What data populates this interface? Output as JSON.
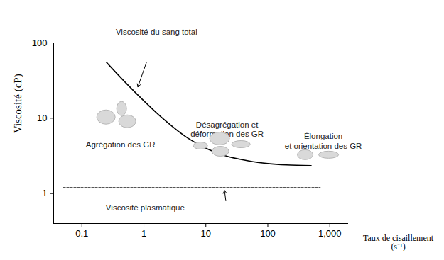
{
  "chart_data": {
    "type": "line",
    "xlabel": "Taux de cisaillement (s⁻¹)",
    "ylabel": "Viscosité (cP)",
    "log": true,
    "grid": false,
    "xlim": [
      0.035,
      2000
    ],
    "xticks": [
      0.1,
      1,
      10,
      100,
      {
        "value": 1000,
        "label": "1,000"
      }
    ],
    "ylim": [
      0.4,
      100
    ],
    "yticks": [
      1,
      10,
      100
    ],
    "series": [
      {
        "x": [
          0.25,
          0.5,
          1,
          2,
          5,
          10,
          20,
          50,
          100,
          200,
          500
        ],
        "values": [
          55,
          30,
          17,
          10,
          5.5,
          4,
          3.2,
          2.7,
          2.5,
          2.4,
          2.35
        ],
        "color": "#000000",
        "line_style": "solid"
      },
      {
        "x": [
          0.05,
          700
        ],
        "values": [
          1.2,
          1.2
        ],
        "color": "#555555",
        "line_style": "dotted"
      }
    ],
    "annotations": [
      {
        "text": "Viscosité du sang total",
        "x": 1.6,
        "y": 140,
        "arrow": {
          "from": [
            1.1,
            55
          ],
          "to": [
            0.8,
            26
          ]
        }
      },
      {
        "text": "Agrégation des GR",
        "x": 0.42,
        "y": 4.5
      },
      {
        "text": "Désagrégation et\ndéformation des GR",
        "x": 22,
        "y": 7.2
      },
      {
        "text": "Élongation\net orientation des GR",
        "x": 785,
        "y": 5.0
      },
      {
        "text": "Viscosité plasmatique",
        "x": 1.05,
        "y": 0.66,
        "arrow": {
          "from": [
            21,
            0.8
          ],
          "to": [
            20,
            1.1
          ]
        }
      }
    ]
  }
}
